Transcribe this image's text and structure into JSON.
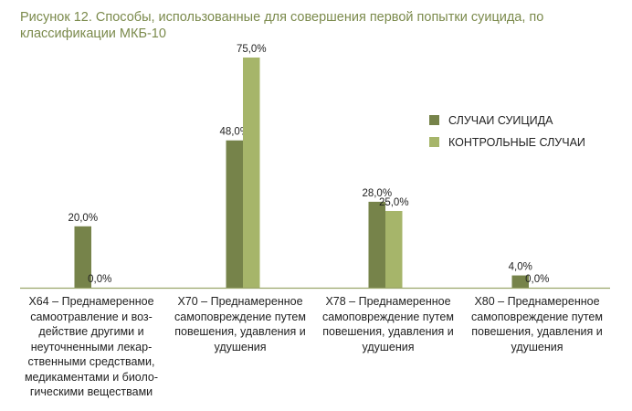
{
  "chart_data": {
    "type": "bar",
    "title": "Рисунок 12. Способы, использованные для совершения первой попытки суицида, по классификации МКБ-10",
    "categories": [
      "X64 – Преднамеренное самоотравление и воз-действие другими и неуточненными лекар-ственными средствами, медикаментами и биоло-гическими веществами",
      "X70 – Преднамеренное самоповреждение путем повешения, удавления и удушения",
      "X78 – Преднамеренное самоповреждение путем повешения, удавления и удушения",
      "X80 – Преднамеренное самоповреждение путем повешения, удавления и удушения"
    ],
    "series": [
      {
        "name": "СЛУЧАИ СУИЦИДА",
        "values": [
          20.0,
          48.0,
          28.0,
          4.0
        ],
        "labels": [
          "20,0%",
          "48,0%",
          "28,0%",
          "4,0%"
        ],
        "color": "#76834a"
      },
      {
        "name": "КОНТРОЛЬНЫЕ СЛУЧАИ",
        "values": [
          0.0,
          75.0,
          25.0,
          0.0
        ],
        "labels": [
          "0,0%",
          "75,0%",
          "25,0%",
          "0,0%"
        ],
        "color": "#a6b56a"
      }
    ],
    "xlabel": "",
    "ylabel": "",
    "ylim": [
      0,
      75
    ],
    "grid": false,
    "legend": "right",
    "axis_color": "#9aa56a"
  }
}
